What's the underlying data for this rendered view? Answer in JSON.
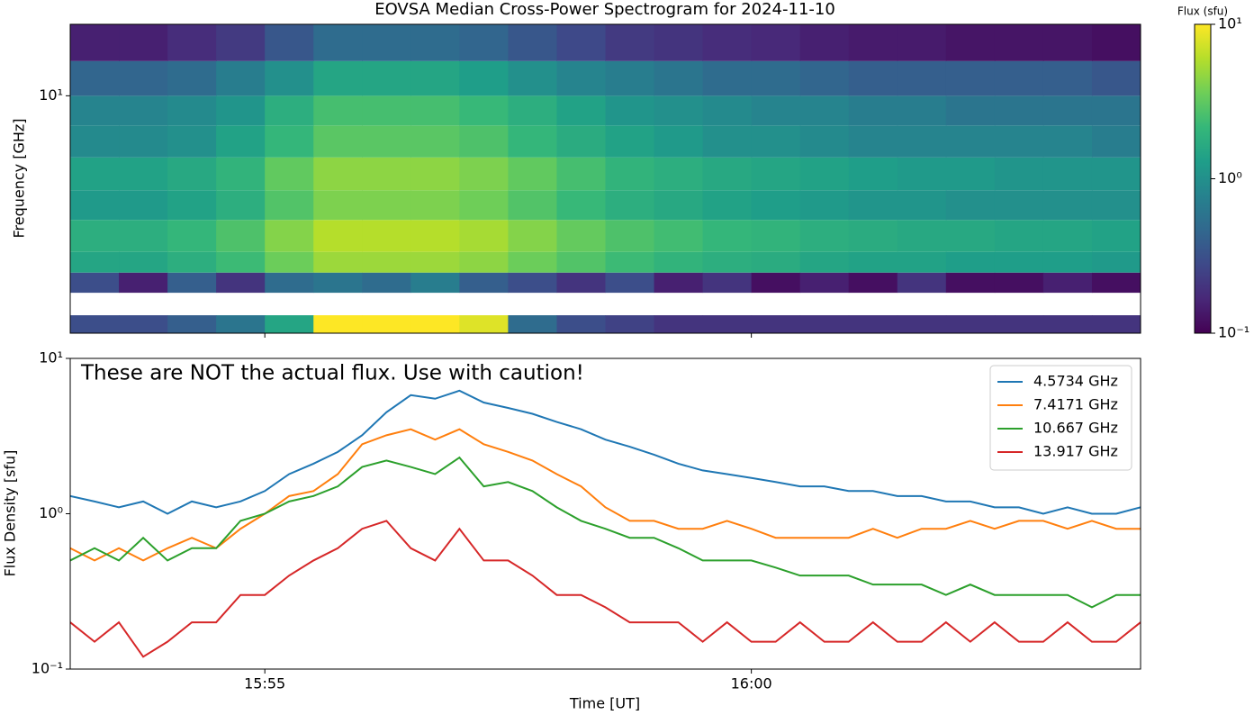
{
  "chart_data": [
    {
      "type": "heatmap",
      "title": "EOVSA Median Cross-Power Spectrogram for 2024-11-10",
      "ylabel": "Frequency [GHz]",
      "log_y": true,
      "ylim": [
        1,
        20
      ],
      "yticks": [
        {
          "value": 10,
          "label": "10¹"
        }
      ],
      "x_bins": [
        953,
        953.5,
        954,
        954.5,
        955,
        955.5,
        956,
        956.5,
        957,
        957.5,
        958,
        958.5,
        959,
        959.5,
        960,
        960.5,
        961,
        961.5,
        962,
        962.5,
        963,
        963.5,
        964
      ],
      "y_bins": [
        1,
        1.19,
        1.48,
        1.8,
        2.2,
        3,
        4,
        5.5,
        7.5,
        10,
        14,
        20
      ],
      "values": [
        [
          0.3,
          0.3,
          0.4,
          0.6,
          1.5,
          10,
          10,
          10,
          8,
          0.5,
          0.3,
          0.25,
          0.2,
          0.2,
          0.2,
          0.2,
          0.2,
          0.2,
          0.2,
          0.2,
          0.2,
          0.2
        ],
        [
          null,
          null,
          null,
          null,
          null,
          null,
          null,
          null,
          null,
          null,
          null,
          null,
          null,
          null,
          null,
          null,
          null,
          null,
          null,
          null,
          null,
          null
        ],
        [
          0.3,
          0.15,
          0.4,
          0.2,
          0.5,
          0.6,
          0.5,
          0.7,
          0.4,
          0.3,
          0.2,
          0.3,
          0.15,
          0.2,
          0.12,
          0.15,
          0.12,
          0.2,
          0.12,
          0.12,
          0.15,
          0.12
        ],
        [
          1.5,
          1.5,
          1.8,
          2.3,
          3.5,
          5,
          5,
          5,
          4.5,
          3.5,
          2.8,
          2.3,
          2,
          1.8,
          1.7,
          1.5,
          1.4,
          1.4,
          1.3,
          1.3,
          1.3,
          1.2
        ],
        [
          1.8,
          1.8,
          2.1,
          2.7,
          4.2,
          6,
          6,
          6,
          5.4,
          4.2,
          3.3,
          2.7,
          2.4,
          2.1,
          2,
          1.8,
          1.7,
          1.6,
          1.6,
          1.5,
          1.5,
          1.4
        ],
        [
          1.2,
          1.2,
          1.4,
          1.8,
          2.8,
          4,
          4,
          4,
          3.6,
          2.8,
          2.2,
          1.8,
          1.6,
          1.4,
          1.3,
          1.2,
          1.1,
          1.1,
          1,
          1,
          1,
          1
        ],
        [
          1.4,
          1.4,
          1.6,
          2,
          3.2,
          4.5,
          4.5,
          4.5,
          4,
          3.2,
          2.5,
          2,
          1.8,
          1.6,
          1.5,
          1.4,
          1.3,
          1.2,
          1.2,
          1.1,
          1.1,
          1.1
        ],
        [
          0.9,
          0.9,
          1,
          1.4,
          2.1,
          3,
          3,
          3,
          2.7,
          2.1,
          1.7,
          1.4,
          1.2,
          1,
          1,
          0.9,
          0.8,
          0.8,
          0.8,
          0.8,
          0.8,
          0.7
        ],
        [
          0.8,
          0.8,
          0.9,
          1.1,
          1.8,
          2.5,
          2.5,
          2.5,
          2.2,
          1.8,
          1.4,
          1.1,
          1,
          0.9,
          0.8,
          0.8,
          0.7,
          0.7,
          0.6,
          0.6,
          0.6,
          0.6
        ],
        [
          0.45,
          0.45,
          0.5,
          0.7,
          1,
          1.5,
          1.5,
          1.5,
          1.3,
          1,
          0.8,
          0.7,
          0.6,
          0.5,
          0.5,
          0.45,
          0.4,
          0.4,
          0.4,
          0.4,
          0.4,
          0.35
        ],
        [
          0.15,
          0.15,
          0.18,
          0.22,
          0.35,
          0.5,
          0.5,
          0.5,
          0.45,
          0.35,
          0.28,
          0.22,
          0.2,
          0.18,
          0.17,
          0.15,
          0.14,
          0.14,
          0.13,
          0.13,
          0.13,
          0.12
        ]
      ],
      "colorbar": {
        "label": "Flux (sfu)",
        "lim": [
          0.1,
          10
        ],
        "ticks": [
          {
            "value": 0.1,
            "label": "10⁻¹"
          },
          {
            "value": 1,
            "label": "10⁰"
          },
          {
            "value": 10,
            "label": "10¹"
          }
        ]
      }
    },
    {
      "type": "line",
      "xlabel": "Time [UT]",
      "ylabel": "Flux Density [sfu]",
      "annotation": "These are NOT the actual flux. Use with caution!",
      "log_y": true,
      "legend": "upper right",
      "xlim": [
        953,
        964
      ],
      "xticks": [
        {
          "value": 955,
          "label": "15:55"
        },
        {
          "value": 960,
          "label": "16:00"
        }
      ],
      "ylim": [
        0.1,
        10
      ],
      "yticks": [
        {
          "value": 0.1,
          "label": "10⁻¹"
        },
        {
          "value": 1,
          "label": "10⁰"
        },
        {
          "value": 10,
          "label": "10¹"
        }
      ],
      "x": [
        953,
        953.25,
        953.5,
        953.75,
        954,
        954.25,
        954.5,
        954.75,
        955,
        955.25,
        955.5,
        955.75,
        956,
        956.25,
        956.5,
        956.75,
        957,
        957.25,
        957.5,
        957.75,
        958,
        958.25,
        958.5,
        958.75,
        959,
        959.25,
        959.5,
        959.75,
        960,
        960.25,
        960.5,
        960.75,
        961,
        961.25,
        961.5,
        961.75,
        962,
        962.25,
        962.5,
        962.75,
        963,
        963.25,
        963.5,
        963.75,
        964
      ],
      "series": [
        {
          "name": "4.5734 GHz",
          "color": "#1f77b4",
          "values": [
            1.3,
            1.2,
            1.1,
            1.2,
            1.0,
            1.2,
            1.1,
            1.2,
            1.4,
            1.8,
            2.1,
            2.5,
            3.2,
            4.5,
            5.8,
            5.5,
            6.2,
            5.2,
            4.8,
            4.4,
            3.9,
            3.5,
            3.0,
            2.7,
            2.4,
            2.1,
            1.9,
            1.8,
            1.7,
            1.6,
            1.5,
            1.5,
            1.4,
            1.4,
            1.3,
            1.3,
            1.2,
            1.2,
            1.1,
            1.1,
            1.0,
            1.1,
            1.0,
            1.0,
            1.1
          ]
        },
        {
          "name": "7.4171 GHz",
          "color": "#ff7f0e",
          "values": [
            0.6,
            0.5,
            0.6,
            0.5,
            0.6,
            0.7,
            0.6,
            0.8,
            1.0,
            1.3,
            1.4,
            1.8,
            2.8,
            3.2,
            3.5,
            3.0,
            3.5,
            2.8,
            2.5,
            2.2,
            1.8,
            1.5,
            1.1,
            0.9,
            0.9,
            0.8,
            0.8,
            0.9,
            0.8,
            0.7,
            0.7,
            0.7,
            0.7,
            0.8,
            0.7,
            0.8,
            0.8,
            0.9,
            0.8,
            0.9,
            0.9,
            0.8,
            0.9,
            0.8,
            0.8
          ]
        },
        {
          "name": "10.667 GHz",
          "color": "#2ca02c",
          "values": [
            0.5,
            0.6,
            0.5,
            0.7,
            0.5,
            0.6,
            0.6,
            0.9,
            1.0,
            1.2,
            1.3,
            1.5,
            2.0,
            2.2,
            2.0,
            1.8,
            2.3,
            1.5,
            1.6,
            1.4,
            1.1,
            0.9,
            0.8,
            0.7,
            0.7,
            0.6,
            0.5,
            0.5,
            0.5,
            0.45,
            0.4,
            0.4,
            0.4,
            0.35,
            0.35,
            0.35,
            0.3,
            0.35,
            0.3,
            0.3,
            0.3,
            0.3,
            0.25,
            0.3,
            0.3
          ]
        },
        {
          "name": "13.917 GHz",
          "color": "#d62728",
          "values": [
            0.2,
            0.15,
            0.2,
            0.12,
            0.15,
            0.2,
            0.2,
            0.3,
            0.3,
            0.4,
            0.5,
            0.6,
            0.8,
            0.9,
            0.6,
            0.5,
            0.8,
            0.5,
            0.5,
            0.4,
            0.3,
            0.3,
            0.25,
            0.2,
            0.2,
            0.2,
            0.15,
            0.2,
            0.15,
            0.15,
            0.2,
            0.15,
            0.15,
            0.2,
            0.15,
            0.15,
            0.2,
            0.15,
            0.2,
            0.15,
            0.15,
            0.2,
            0.15,
            0.15,
            0.2
          ]
        }
      ]
    }
  ]
}
